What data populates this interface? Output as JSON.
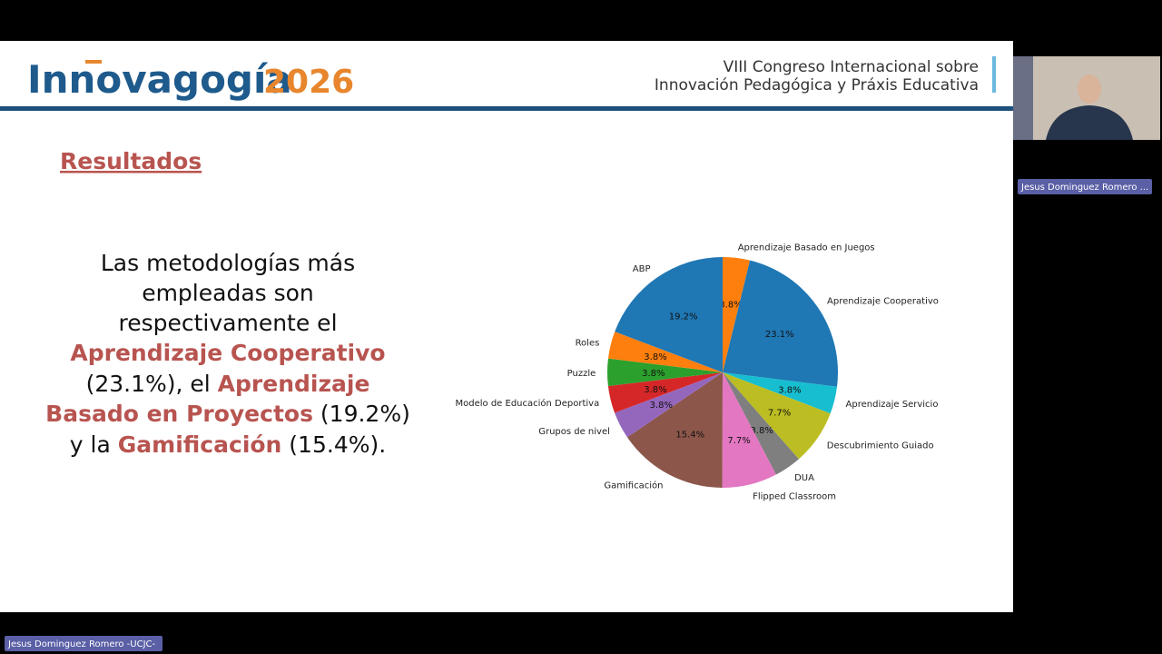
{
  "header": {
    "logo": "Innovagogía",
    "logo_year": "2026",
    "congress_line1": "VIII Congreso Internacional sobre",
    "congress_line2": "Innovación Pedagógica y Práxis Educativa"
  },
  "slide": {
    "heading": "Resultados",
    "body_lines": [
      [
        "Las metodologías más"
      ],
      [
        "empleadas son"
      ],
      [
        "respectivamente el"
      ],
      [
        "Aprendizaje Cooperativo"
      ],
      [
        "(23.1%), el ",
        "Aprendizaje"
      ],
      [
        "Basado en Proyectos",
        " (19.2%)"
      ],
      [
        "y la ",
        "Gamificación",
        " (15.4%)."
      ]
    ]
  },
  "chart_data": {
    "type": "pie",
    "start_angle": 90,
    "direction": "clockwise",
    "categories": [
      "Aprendizaje Basado en Juegos",
      "Aprendizaje Cooperativo",
      "Aprendizaje Servicio",
      "Descubrimiento Guiado",
      "DUA",
      "Flipped Classroom",
      "Gamificación",
      "Grupos de nivel",
      "Modelo de Educación Deportiva",
      "Puzzle",
      "Roles",
      "ABP"
    ],
    "values": [
      3.8,
      23.1,
      3.8,
      7.7,
      3.8,
      7.7,
      15.4,
      3.8,
      3.8,
      3.8,
      3.8,
      19.2
    ],
    "value_labels": [
      "3.8%",
      "23.1%",
      "3.8%",
      "7.7%",
      "3.8%",
      "7.7%",
      "15.4%",
      "3.8%",
      "3.8%",
      "3.8%",
      "3.8%",
      "19.2%"
    ],
    "colors": [
      "#ff7f0e",
      "#1f77b4",
      "#17becf",
      "#bcbd22",
      "#7f7f7f",
      "#e377c2",
      "#8c564b",
      "#9467bd",
      "#d62728",
      "#2ca02c",
      "#ff7f0e",
      "#1f77b4"
    ]
  },
  "participants": {
    "thumbnail_name": "Jesus Dominguez Romero ...",
    "speaker_name": "Jesus Dominguez Romero -UCJC-"
  }
}
